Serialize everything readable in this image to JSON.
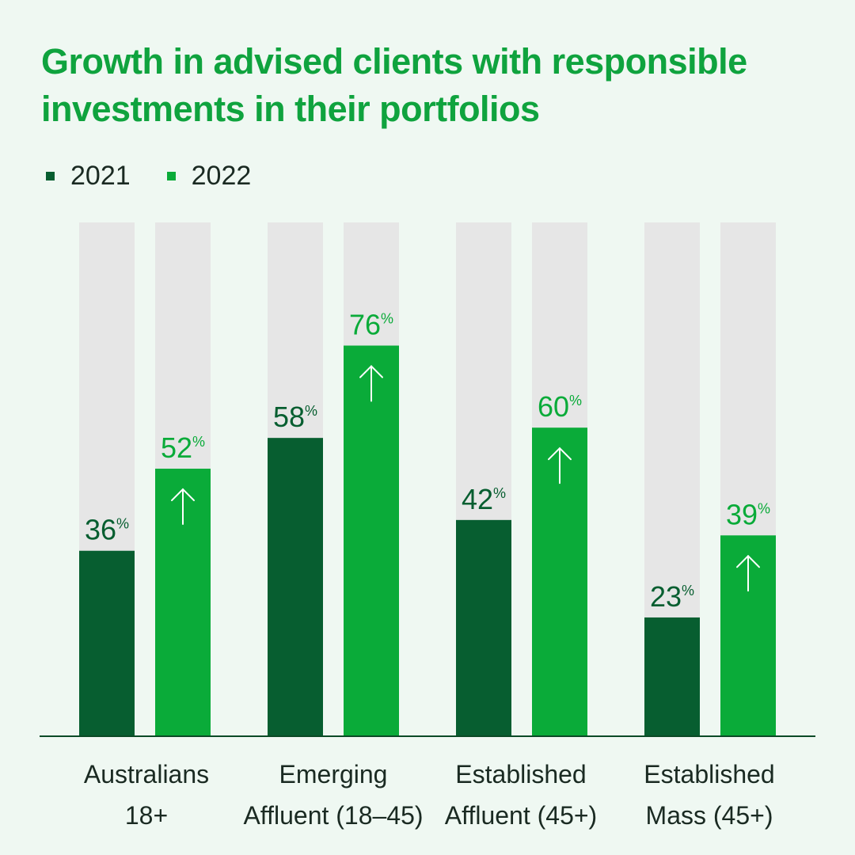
{
  "title_lines": [
    "Growth in advised clients with responsible",
    "investments in their portfolios"
  ],
  "colors": {
    "series_2021": "#075e30",
    "series_2022": "#0aab39",
    "track": "#e6e6e6",
    "title": "#0fa33e",
    "text": "#1a2a22",
    "background": "#eff8f2"
  },
  "legend": [
    {
      "label": "2021",
      "color": "#075e30"
    },
    {
      "label": "2022",
      "color": "#0aab39"
    }
  ],
  "category_labels": [
    [
      "Australians",
      "18+"
    ],
    [
      "Emerging",
      "Affluent (18–45)"
    ],
    [
      "Established",
      "Affluent (45+)"
    ],
    [
      "Established",
      "Mass (45+)"
    ]
  ],
  "chart_data": {
    "type": "bar",
    "title": "Growth in advised clients with responsible investments in their portfolios",
    "categories": [
      "Australians 18+",
      "Emerging Affluent (18–45)",
      "Established Affluent (45+)",
      "Established Mass (45+)"
    ],
    "series": [
      {
        "name": "2021",
        "values": [
          36,
          58,
          42,
          23
        ]
      },
      {
        "name": "2022",
        "values": [
          52,
          76,
          60,
          39
        ]
      }
    ],
    "unit": "%",
    "ylim": [
      0,
      100
    ],
    "annotations": "up arrow on each 2022 bar",
    "legend_position": "top-left",
    "grid": false
  }
}
